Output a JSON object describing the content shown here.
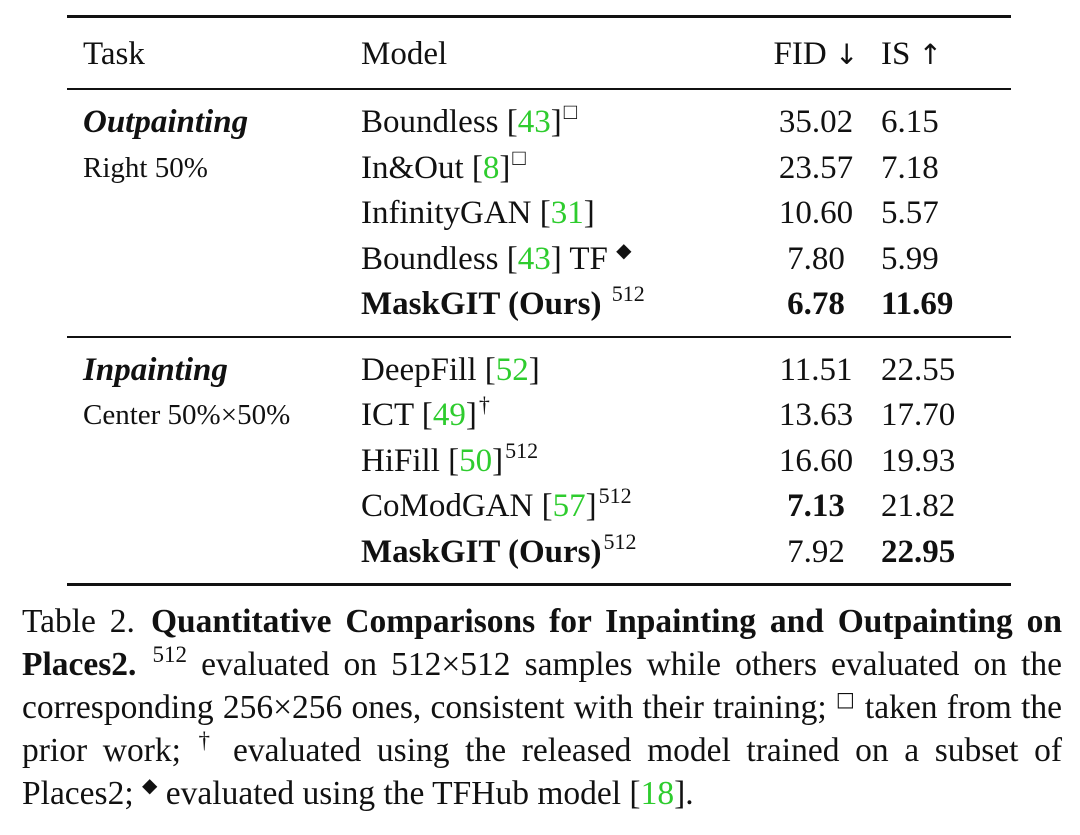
{
  "header": {
    "task": "Task",
    "model": "Model",
    "fid": "FID",
    "fid_arrow": "↓",
    "is": "IS",
    "is_arrow": "↑"
  },
  "sections": [
    {
      "task": "Outpainting",
      "task_sub": "Right 50%",
      "rows": [
        {
          "model": "Boundless [",
          "cite": "43",
          "tail": "]",
          "sup": "□",
          "fid": "35.02",
          "is": "6.15"
        },
        {
          "model": "In&Out [",
          "cite": "8",
          "tail": "]",
          "sup": "□",
          "fid": "23.57",
          "is": "7.18"
        },
        {
          "model": "InfinityGAN [",
          "cite": "31",
          "tail": "]",
          "sup": "",
          "fid": "10.60",
          "is": "5.57"
        },
        {
          "model": "Boundless [",
          "cite": "43",
          "tail": "] TF",
          "sup": "◆",
          "fid": "7.80",
          "is": "5.99"
        },
        {
          "model": "MaskGIT (Ours)",
          "sup": "512",
          "fid": "6.78",
          "is": "11.69"
        }
      ]
    },
    {
      "task": "Inpainting",
      "task_sub": "Center 50%×50%",
      "rows": [
        {
          "model": "DeepFill [",
          "cite": "52",
          "tail": "]",
          "sup": "",
          "fid": "11.51",
          "is": "22.55"
        },
        {
          "model": "ICT [",
          "cite": "49",
          "tail": "]",
          "sup": "†",
          "fid": "13.63",
          "is": "17.70"
        },
        {
          "model": "HiFill [",
          "cite": "50",
          "tail": "]",
          "sup": "512",
          "fid": "16.60",
          "is": "19.93"
        },
        {
          "model": "CoModGAN [",
          "cite": "57",
          "tail": "]",
          "sup": "512",
          "fid": "7.13",
          "is": "21.82"
        },
        {
          "model": "MaskGIT (Ours)",
          "sup": "512",
          "fid": "7.92",
          "is": "22.95"
        }
      ]
    }
  ],
  "caption": {
    "label": "Table 2.",
    "title": "Quantitative Comparisons for Inpainting and Outpainting on Places2.",
    "sup_512": "512",
    "t1": " evaluated on 512×512 samples while others evaluated on the corresponding 256×256 ones, consistent with their training; ",
    "sym_square": "□",
    "t2": " taken from the prior work; ",
    "sym_dagger": "†",
    "t3": " evaluated using the released model trained on a subset of Places2; ",
    "sym_diamond": "◆",
    "t4": " evaluated using the TFHub model [",
    "cite": "18",
    "t5": "]."
  },
  "colors": {
    "citation": "#2ecc2e",
    "text": "#111111"
  }
}
